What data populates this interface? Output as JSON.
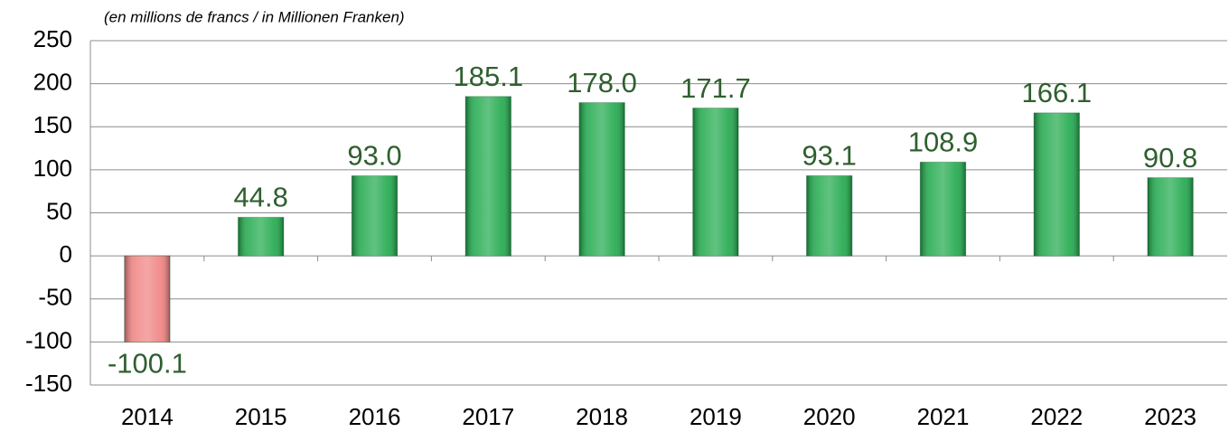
{
  "chart_data": {
    "type": "bar",
    "subtitle": "(en millions de francs / in Millionen Franken)",
    "categories": [
      "2014",
      "2015",
      "2016",
      "2017",
      "2018",
      "2019",
      "2020",
      "2021",
      "2022",
      "2023"
    ],
    "values": [
      -100.1,
      44.8,
      93,
      185.1,
      178,
      171.7,
      93.1,
      108.9,
      166.1,
      90.8
    ],
    "value_labels": [
      "-100.1",
      "44.8",
      "93.0",
      "185.1",
      "178.0",
      "171.7",
      "93.1",
      "108.9",
      "166.1",
      "90.8"
    ],
    "colors": [
      "#f08080",
      "#1ea84a",
      "#1ea84a",
      "#1ea84a",
      "#1ea84a",
      "#1ea84a",
      "#1ea84a",
      "#1ea84a",
      "#1ea84a",
      "#1ea84a"
    ],
    "ylim": [
      -150,
      250
    ],
    "yticks": [
      -150,
      -100,
      -50,
      0,
      50,
      100,
      150,
      200,
      250
    ],
    "grid": true
  }
}
